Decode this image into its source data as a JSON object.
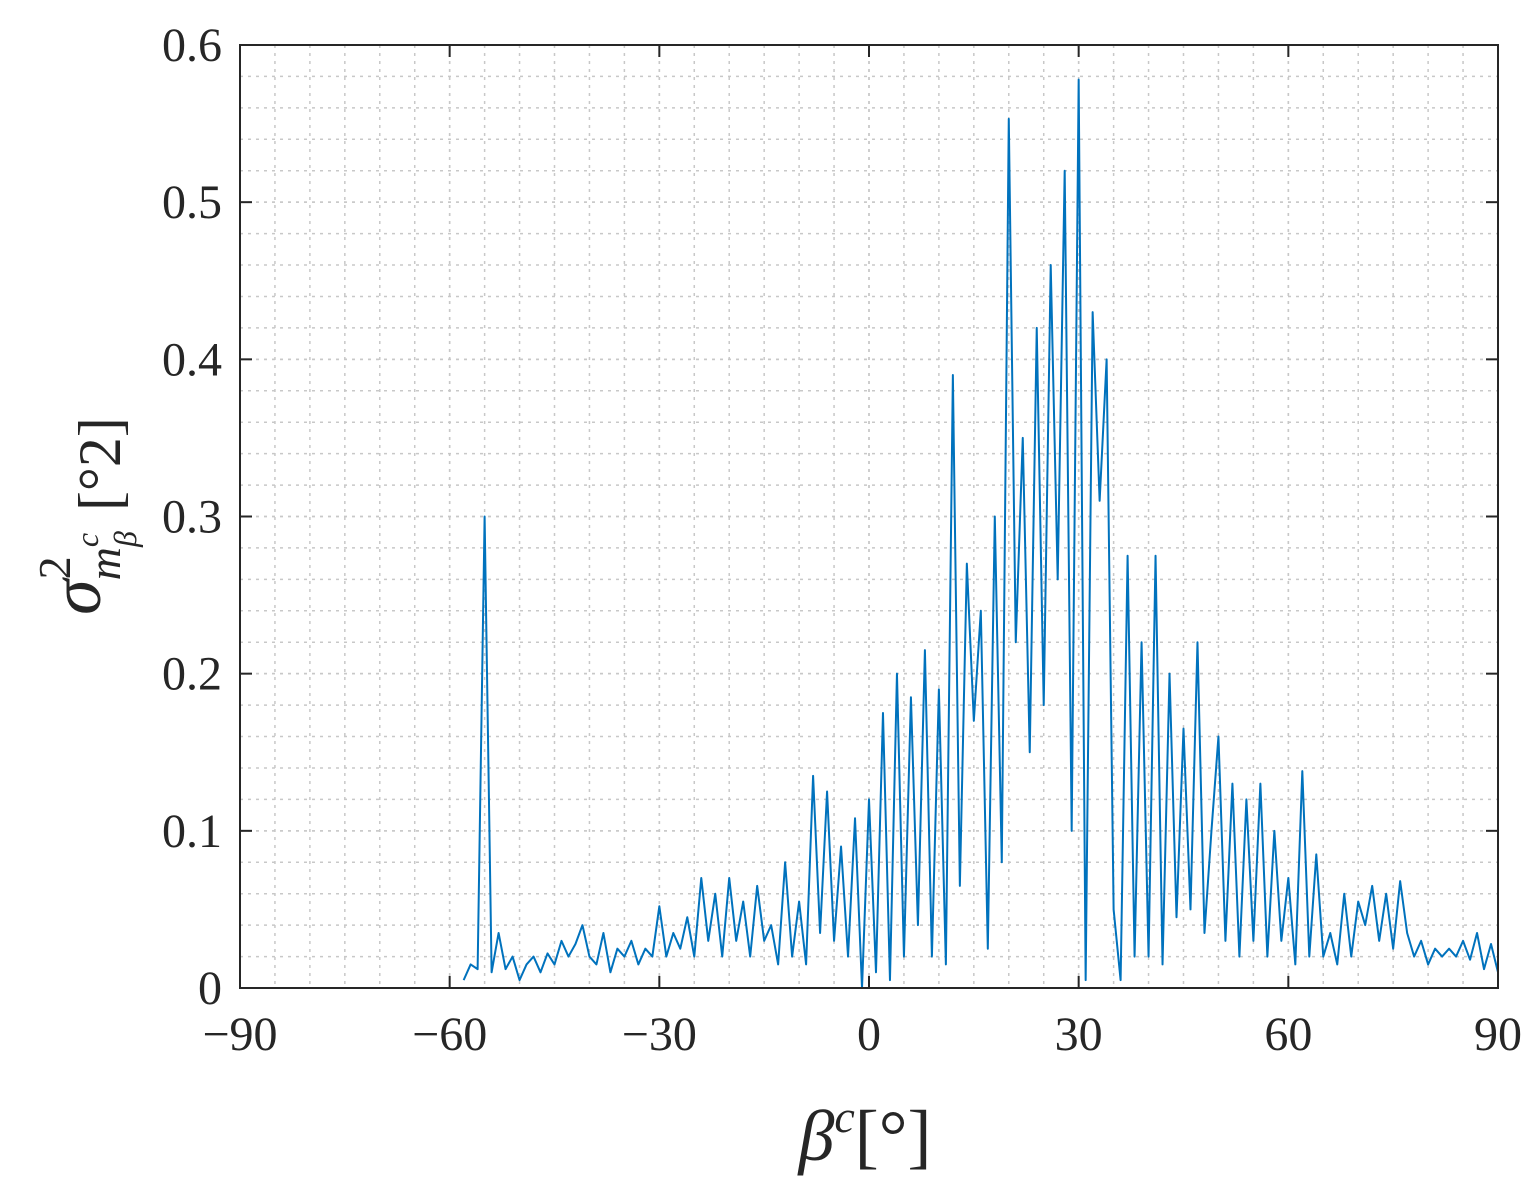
{
  "chart_data": {
    "type": "line",
    "xlabel": {
      "base": "β",
      "sup": "c",
      "unit": "[°]"
    },
    "ylabel": {
      "base": "σ",
      "sup": "2",
      "sub": "m",
      "subsup": "c",
      "subsub": "β",
      "unit": "[°2]"
    },
    "xlim": [
      -90,
      90
    ],
    "ylim": [
      0,
      0.6
    ],
    "xticks": [
      {
        "value": -90,
        "label": "−90"
      },
      {
        "value": -60,
        "label": "−60"
      },
      {
        "value": -30,
        "label": "−30"
      },
      0,
      30,
      60,
      90
    ],
    "yticks": [
      0,
      0.1,
      0.2,
      0.3,
      0.4,
      0.5,
      0.6
    ],
    "grid": true,
    "minor_grid": true,
    "xminor_step": 5,
    "yminor_step": 0.02,
    "x": [
      -58,
      -57,
      -56,
      -55,
      -54,
      -53,
      -52,
      -51,
      -50,
      -49,
      -48,
      -47,
      -46,
      -45,
      -44,
      -43,
      -42,
      -41,
      -40,
      -39,
      -38,
      -37,
      -36,
      -35,
      -34,
      -33,
      -32,
      -31,
      -30,
      -29,
      -28,
      -27,
      -26,
      -25,
      -24,
      -23,
      -22,
      -21,
      -20,
      -19,
      -18,
      -17,
      -16,
      -15,
      -14,
      -13,
      -12,
      -11,
      -10,
      -9,
      -8,
      -7,
      -6,
      -5,
      -4,
      -3,
      -2,
      -1,
      0,
      1,
      2,
      3,
      4,
      5,
      6,
      7,
      8,
      9,
      10,
      11,
      12,
      13,
      14,
      15,
      16,
      17,
      18,
      19,
      20,
      21,
      22,
      23,
      24,
      25,
      26,
      27,
      28,
      29,
      30,
      31,
      32,
      33,
      34,
      35,
      36,
      37,
      38,
      39,
      40,
      41,
      42,
      43,
      44,
      45,
      46,
      47,
      48,
      49,
      50,
      51,
      52,
      53,
      54,
      55,
      56,
      57,
      58,
      59,
      60,
      61,
      62,
      63,
      64,
      65,
      66,
      67,
      68,
      69,
      70,
      71,
      72,
      73,
      74,
      75,
      76,
      77,
      78,
      79,
      80,
      81,
      82,
      83,
      84,
      85,
      86,
      87,
      88,
      89,
      90
    ],
    "series": [
      {
        "color": "#0072bd",
        "values": [
          0.005,
          0.015,
          0.012,
          0.3,
          0.01,
          0.035,
          0.012,
          0.02,
          0.005,
          0.015,
          0.02,
          0.01,
          0.022,
          0.015,
          0.03,
          0.02,
          0.028,
          0.04,
          0.02,
          0.015,
          0.035,
          0.01,
          0.025,
          0.02,
          0.03,
          0.015,
          0.025,
          0.02,
          0.052,
          0.02,
          0.035,
          0.025,
          0.045,
          0.02,
          0.07,
          0.03,
          0.06,
          0.02,
          0.07,
          0.03,
          0.055,
          0.02,
          0.065,
          0.03,
          0.04,
          0.015,
          0.08,
          0.02,
          0.055,
          0.015,
          0.135,
          0.035,
          0.125,
          0.03,
          0.09,
          0.02,
          0.108,
          0.0,
          0.12,
          0.01,
          0.175,
          0.005,
          0.2,
          0.02,
          0.185,
          0.04,
          0.215,
          0.02,
          0.19,
          0.015,
          0.39,
          0.065,
          0.27,
          0.17,
          0.24,
          0.025,
          0.3,
          0.08,
          0.553,
          0.22,
          0.35,
          0.15,
          0.42,
          0.18,
          0.46,
          0.26,
          0.52,
          0.1,
          0.578,
          0.005,
          0.43,
          0.31,
          0.4,
          0.05,
          0.005,
          0.275,
          0.02,
          0.22,
          0.02,
          0.275,
          0.015,
          0.2,
          0.045,
          0.165,
          0.05,
          0.22,
          0.035,
          0.1,
          0.16,
          0.03,
          0.13,
          0.02,
          0.12,
          0.03,
          0.13,
          0.02,
          0.1,
          0.03,
          0.07,
          0.015,
          0.138,
          0.02,
          0.085,
          0.02,
          0.035,
          0.015,
          0.06,
          0.02,
          0.055,
          0.04,
          0.065,
          0.03,
          0.06,
          0.025,
          0.068,
          0.035,
          0.02,
          0.03,
          0.015,
          0.025,
          0.02,
          0.025,
          0.02,
          0.03,
          0.018,
          0.035,
          0.012,
          0.028,
          0.01
        ]
      }
    ]
  }
}
